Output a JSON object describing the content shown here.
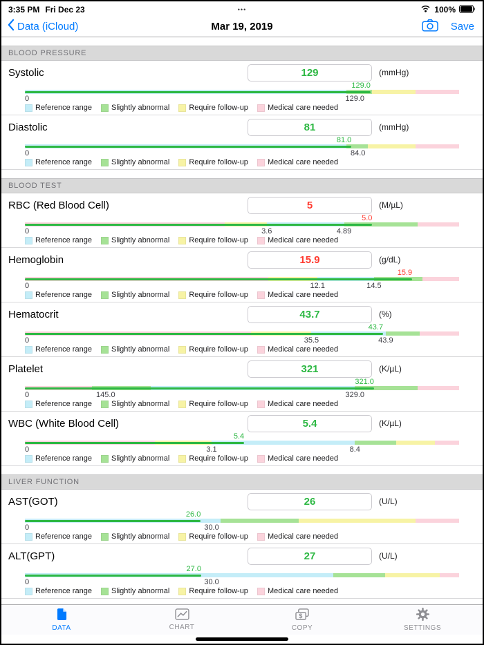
{
  "status_bar": {
    "time": "3:35 PM",
    "date": "Fri Dec 23",
    "dots": "•••",
    "battery_percent": "100%"
  },
  "nav_bar": {
    "back_label": "Data (iCloud)",
    "title": "Mar 19, 2019",
    "save_label": "Save"
  },
  "colors": {
    "accent": "#007aff",
    "green": "#2db843",
    "red": "#ff3b30"
  },
  "zone_colors": {
    "reference": "#c4edf8",
    "slight": "#a6e296",
    "followup": "#f7f3a5",
    "medical": "#fbd3dc"
  },
  "legend": [
    {
      "zone": "reference",
      "label": "Reference range"
    },
    {
      "zone": "slight",
      "label": "Slightly abnormal"
    },
    {
      "zone": "followup",
      "label": "Require follow-up"
    },
    {
      "zone": "medical",
      "label": "Medical care needed"
    }
  ],
  "sections": [
    {
      "title": "BLOOD PRESSURE",
      "metrics": [
        {
          "name": "Systolic",
          "value": "129",
          "unit": "(mmHg)",
          "state": "normal",
          "marker": "129.0",
          "value_pos": 79.6,
          "scale_labels": [
            {
              "text": "0",
              "pos": 0
            },
            {
              "text": "129.0",
              "pos": 76
            }
          ],
          "segments": [
            {
              "zone": "reference",
              "from": 0,
              "to": 74
            },
            {
              "zone": "slight",
              "from": 74,
              "to": 80
            },
            {
              "zone": "followup",
              "from": 80,
              "to": 90
            },
            {
              "zone": "medical",
              "from": 90,
              "to": 100
            }
          ]
        },
        {
          "name": "Diastolic",
          "value": "81",
          "unit": "(mmHg)",
          "state": "normal",
          "marker": "81.0",
          "value_pos": 75.2,
          "scale_labels": [
            {
              "text": "0",
              "pos": 0
            },
            {
              "text": "84.0",
              "pos": 76.7
            }
          ],
          "segments": [
            {
              "zone": "reference",
              "from": 0,
              "to": 74
            },
            {
              "zone": "slight",
              "from": 74,
              "to": 79
            },
            {
              "zone": "followup",
              "from": 79,
              "to": 90
            },
            {
              "zone": "medical",
              "from": 90,
              "to": 100
            }
          ]
        }
      ]
    },
    {
      "title": "BLOOD TEST",
      "metrics": [
        {
          "name": "RBC (Red Blood Cell)",
          "value": "5",
          "unit": "(M/µL)",
          "state": "abnormal",
          "marker": "5.0",
          "value_pos": 80,
          "scale_labels": [
            {
              "text": "0",
              "pos": 0
            },
            {
              "text": "3.6",
              "pos": 55.7
            },
            {
              "text": "4.89",
              "pos": 73.5
            }
          ],
          "segments": [
            {
              "zone": "medical",
              "from": 0,
              "to": 46
            },
            {
              "zone": "followup",
              "from": 46,
              "to": 55.7
            },
            {
              "zone": "reference",
              "from": 55.7,
              "to": 73.5
            },
            {
              "zone": "slight",
              "from": 73.5,
              "to": 90.5
            },
            {
              "zone": "medical",
              "from": 90.5,
              "to": 100
            }
          ]
        },
        {
          "name": "Hemoglobin",
          "value": "15.9",
          "unit": "(g/dL)",
          "state": "abnormal",
          "marker": "15.9",
          "value_pos": 89.2,
          "scale_labels": [
            {
              "text": "0",
              "pos": 0
            },
            {
              "text": "12.1",
              "pos": 67.4
            },
            {
              "text": "14.5",
              "pos": 80.4
            }
          ],
          "segments": [
            {
              "zone": "medical",
              "from": 0,
              "to": 56
            },
            {
              "zone": "followup",
              "from": 56,
              "to": 67.4
            },
            {
              "zone": "reference",
              "from": 67.4,
              "to": 80.4
            },
            {
              "zone": "slight",
              "from": 80.4,
              "to": 91.5
            },
            {
              "zone": "medical",
              "from": 91.5,
              "to": 100
            }
          ]
        },
        {
          "name": "Hematocrit",
          "value": "43.7",
          "unit": "(%)",
          "state": "normal",
          "marker": "43.7",
          "value_pos": 82.5,
          "scale_labels": [
            {
              "text": "0",
              "pos": 0
            },
            {
              "text": "35.5",
              "pos": 66
            },
            {
              "text": "43.9",
              "pos": 83.1
            }
          ],
          "segments": [
            {
              "zone": "medical",
              "from": 0,
              "to": 52
            },
            {
              "zone": "followup",
              "from": 52,
              "to": 66
            },
            {
              "zone": "reference",
              "from": 66,
              "to": 83.1
            },
            {
              "zone": "slight",
              "from": 83.1,
              "to": 91
            },
            {
              "zone": "medical",
              "from": 91,
              "to": 100
            }
          ]
        },
        {
          "name": "Platelet",
          "value": "321",
          "unit": "(K/µL)",
          "state": "normal",
          "marker": "321.0",
          "value_pos": 80.4,
          "scale_labels": [
            {
              "text": "0",
              "pos": 0
            },
            {
              "text": "145.0",
              "pos": 18.6
            },
            {
              "text": "329.0",
              "pos": 76
            }
          ],
          "segments": [
            {
              "zone": "medical",
              "from": 0,
              "to": 15.5
            },
            {
              "zone": "slight",
              "from": 15.5,
              "to": 29
            },
            {
              "zone": "reference",
              "from": 29,
              "to": 76
            },
            {
              "zone": "slight",
              "from": 76,
              "to": 90.5
            },
            {
              "zone": "medical",
              "from": 90.5,
              "to": 100
            }
          ]
        },
        {
          "name": "WBC (White Blood Cell)",
          "value": "5.4",
          "unit": "(K/µL)",
          "state": "normal",
          "marker": "5.4",
          "value_pos": 50.5,
          "scale_labels": [
            {
              "text": "0",
              "pos": 0
            },
            {
              "text": "3.1",
              "pos": 43
            },
            {
              "text": "8.4",
              "pos": 76
            }
          ],
          "segments": [
            {
              "zone": "medical",
              "from": 0,
              "to": 30
            },
            {
              "zone": "followup",
              "from": 30,
              "to": 43
            },
            {
              "zone": "reference",
              "from": 43,
              "to": 76
            },
            {
              "zone": "slight",
              "from": 76,
              "to": 85.5
            },
            {
              "zone": "followup",
              "from": 85.5,
              "to": 94.5
            },
            {
              "zone": "medical",
              "from": 94.5,
              "to": 100
            }
          ]
        }
      ]
    },
    {
      "title": "LIVER FUNCTION",
      "metrics": [
        {
          "name": "AST(GOT)",
          "value": "26",
          "unit": "(U/L)",
          "state": "normal",
          "marker": "26.0",
          "value_pos": 40.5,
          "scale_labels": [
            {
              "text": "0",
              "pos": 0
            },
            {
              "text": "30.0",
              "pos": 43
            }
          ],
          "segments": [
            {
              "zone": "reference",
              "from": 0,
              "to": 45
            },
            {
              "zone": "slight",
              "from": 45,
              "to": 63
            },
            {
              "zone": "followup",
              "from": 63,
              "to": 90
            },
            {
              "zone": "medical",
              "from": 90,
              "to": 100
            }
          ]
        },
        {
          "name": "ALT(GPT)",
          "value": "27",
          "unit": "(U/L)",
          "state": "normal",
          "marker": "27.0",
          "value_pos": 40.6,
          "scale_labels": [
            {
              "text": "0",
              "pos": 0
            },
            {
              "text": "30.0",
              "pos": 43
            }
          ],
          "segments": [
            {
              "zone": "reference",
              "from": 0,
              "to": 71
            },
            {
              "zone": "slight",
              "from": 71,
              "to": 83
            },
            {
              "zone": "followup",
              "from": 83,
              "to": 95.5
            },
            {
              "zone": "medical",
              "from": 95.5,
              "to": 100
            }
          ]
        }
      ]
    }
  ],
  "tab_bar": {
    "items": [
      {
        "label": "DATA",
        "icon": "document-icon",
        "active": true
      },
      {
        "label": "CHART",
        "icon": "chart-icon",
        "active": false
      },
      {
        "label": "COPY",
        "icon": "copy-icon",
        "active": false
      },
      {
        "label": "SETTINGS",
        "icon": "gear-icon",
        "active": false
      }
    ]
  }
}
